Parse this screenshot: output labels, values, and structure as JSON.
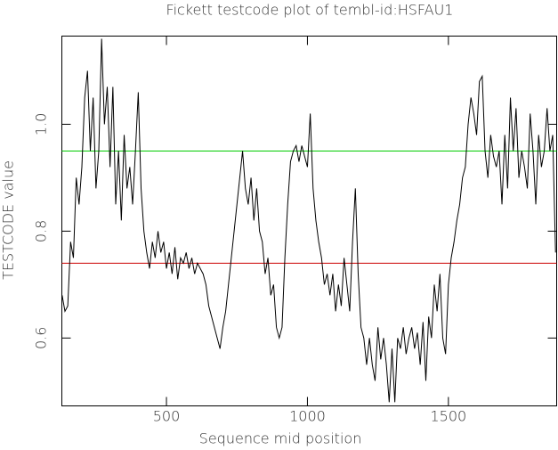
{
  "chart_data": {
    "type": "line",
    "title": "Fickett testcode plot of tembl-id:HSFAU1",
    "xlabel": "Sequence mid position",
    "ylabel": "TESTCODE value",
    "xlim": [
      129,
      1884
    ],
    "ylim": [
      0.473,
      1.165
    ],
    "xticks": [
      500,
      1000,
      1500
    ],
    "yticks": [
      0.6,
      0.8,
      {
        "value": 1,
        "label": "1.0"
      }
    ],
    "reference_lines": [
      {
        "value": 0.95,
        "color": "#00cc00"
      },
      {
        "value": 0.74,
        "color": "#cc0000"
      }
    ],
    "x": [
      130,
      140,
      150,
      160,
      170,
      180,
      190,
      200,
      210,
      220,
      230,
      240,
      250,
      260,
      270,
      280,
      290,
      300,
      310,
      320,
      330,
      340,
      350,
      360,
      370,
      380,
      390,
      400,
      410,
      420,
      430,
      440,
      450,
      460,
      470,
      480,
      490,
      500,
      510,
      520,
      530,
      540,
      550,
      560,
      570,
      580,
      590,
      600,
      610,
      620,
      630,
      640,
      650,
      660,
      670,
      680,
      690,
      700,
      710,
      720,
      730,
      740,
      750,
      760,
      770,
      780,
      790,
      800,
      810,
      820,
      830,
      840,
      850,
      860,
      870,
      880,
      890,
      900,
      910,
      920,
      930,
      940,
      950,
      960,
      970,
      980,
      990,
      1000,
      1010,
      1020,
      1030,
      1040,
      1050,
      1060,
      1070,
      1080,
      1090,
      1100,
      1110,
      1120,
      1130,
      1140,
      1150,
      1160,
      1170,
      1180,
      1190,
      1200,
      1210,
      1220,
      1230,
      1240,
      1250,
      1260,
      1270,
      1280,
      1290,
      1300,
      1310,
      1320,
      1330,
      1340,
      1350,
      1360,
      1370,
      1380,
      1390,
      1400,
      1410,
      1420,
      1430,
      1440,
      1450,
      1460,
      1470,
      1480,
      1490,
      1500,
      1510,
      1520,
      1530,
      1540,
      1550,
      1560,
      1570,
      1580,
      1590,
      1600,
      1610,
      1620,
      1630,
      1640,
      1650,
      1660,
      1670,
      1680,
      1690,
      1700,
      1710,
      1720,
      1730,
      1740,
      1750,
      1760,
      1770,
      1780,
      1790,
      1800,
      1810,
      1820,
      1830,
      1840,
      1850,
      1860,
      1870,
      1880
    ],
    "series": [
      {
        "color": "#000000",
        "values": [
          0.68,
          0.65,
          0.66,
          0.78,
          0.75,
          0.9,
          0.85,
          0.92,
          1.05,
          1.1,
          0.95,
          1.05,
          0.88,
          0.95,
          1.16,
          1.0,
          1.07,
          0.92,
          1.07,
          0.85,
          0.95,
          0.82,
          0.98,
          0.88,
          0.92,
          0.85,
          0.95,
          1.06,
          0.88,
          0.8,
          0.76,
          0.73,
          0.78,
          0.75,
          0.8,
          0.76,
          0.78,
          0.73,
          0.76,
          0.72,
          0.77,
          0.71,
          0.75,
          0.74,
          0.76,
          0.73,
          0.75,
          0.72,
          0.74,
          0.73,
          0.72,
          0.7,
          0.66,
          0.64,
          0.62,
          0.6,
          0.58,
          0.62,
          0.65,
          0.7,
          0.75,
          0.8,
          0.85,
          0.9,
          0.95,
          0.88,
          0.85,
          0.9,
          0.82,
          0.88,
          0.8,
          0.78,
          0.72,
          0.75,
          0.68,
          0.7,
          0.62,
          0.6,
          0.62,
          0.75,
          0.85,
          0.93,
          0.95,
          0.96,
          0.93,
          0.96,
          0.94,
          0.92,
          1.02,
          0.88,
          0.82,
          0.78,
          0.75,
          0.7,
          0.72,
          0.68,
          0.72,
          0.65,
          0.7,
          0.66,
          0.75,
          0.7,
          0.65,
          0.78,
          0.88,
          0.72,
          0.62,
          0.6,
          0.55,
          0.6,
          0.55,
          0.52,
          0.62,
          0.56,
          0.6,
          0.55,
          0.48,
          0.58,
          0.48,
          0.6,
          0.58,
          0.62,
          0.57,
          0.6,
          0.62,
          0.58,
          0.61,
          0.55,
          0.63,
          0.52,
          0.64,
          0.6,
          0.7,
          0.65,
          0.72,
          0.6,
          0.57,
          0.7,
          0.75,
          0.78,
          0.82,
          0.85,
          0.9,
          0.92,
          1.0,
          1.05,
          1.02,
          0.98,
          1.08,
          1.09,
          0.95,
          0.9,
          0.98,
          0.94,
          0.92,
          0.95,
          0.85,
          0.98,
          0.88,
          1.05,
          0.95,
          1.03,
          0.9,
          0.95,
          0.92,
          0.88,
          1.02,
          0.95,
          0.85,
          0.98,
          0.92,
          0.95,
          1.03,
          0.95,
          0.98,
          0.76
        ]
      }
    ]
  }
}
